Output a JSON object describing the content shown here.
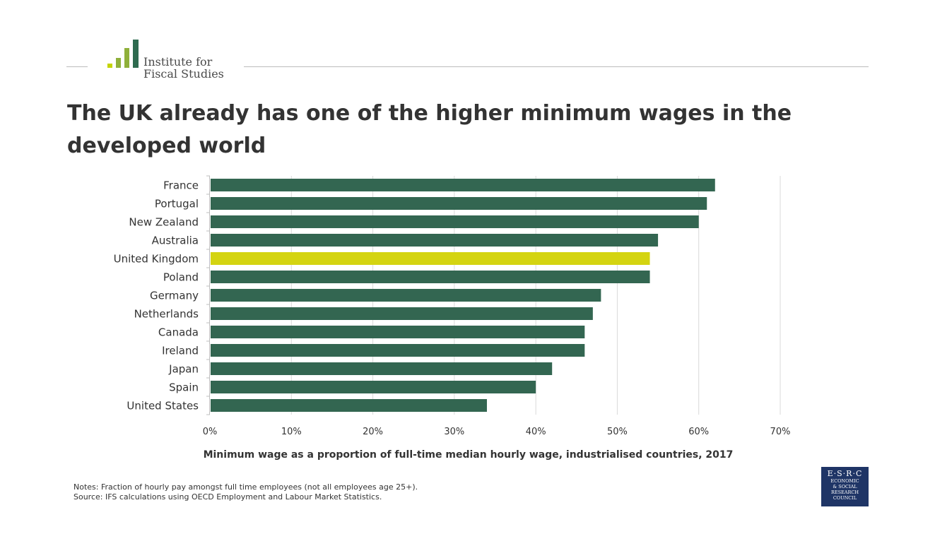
{
  "branding": {
    "logo_line1": "Institute for",
    "logo_line2": "Fiscal Studies",
    "esrc_abbrev": "E·S·R·C",
    "esrc_lines": [
      "ECONOMIC",
      "& SOCIAL",
      "RESEARCH",
      "COUNCIL"
    ],
    "colors": {
      "primary_green": "#2e6b4f",
      "light_green": "#8fb03a",
      "lime": "#c5d400"
    }
  },
  "header": {
    "title": "The UK already has one of the higher minimum wages in the developed world"
  },
  "colors": {
    "bar_default": "#336651",
    "bar_highlight": "#d4d411",
    "gridline": "#d9d9d9",
    "axis": "#bfbfbf"
  },
  "chart_data": {
    "type": "bar",
    "orientation": "horizontal",
    "title": "Minimum wage as a proportion of full-time median hourly wage, industrialised countries, 2017",
    "xlabel": "Minimum wage as a proportion of full-time median hourly wage, industrialised countries, 2017",
    "ylabel": "",
    "categories": [
      "France",
      "Portugal",
      "New Zealand",
      "Australia",
      "United Kingdom",
      "Poland",
      "Germany",
      "Netherlands",
      "Canada",
      "Ireland",
      "Japan",
      "Spain",
      "United States"
    ],
    "values": [
      62,
      61,
      60,
      55,
      54,
      54,
      48,
      47,
      46,
      46,
      42,
      40,
      34
    ],
    "highlight": "United Kingdom",
    "xlim": [
      0,
      70
    ],
    "ticks": [
      0,
      10,
      20,
      30,
      40,
      50,
      60,
      70
    ],
    "tick_labels": [
      "0%",
      "10%",
      "20%",
      "30%",
      "40%",
      "50%",
      "60%",
      "70%"
    ],
    "grid": true
  },
  "notes": {
    "line1": "Notes: Fraction of hourly pay amongst full time employees (not all employees age 25+).",
    "line2": "Source: IFS calculations using OECD Employment and Labour Market Statistics."
  }
}
